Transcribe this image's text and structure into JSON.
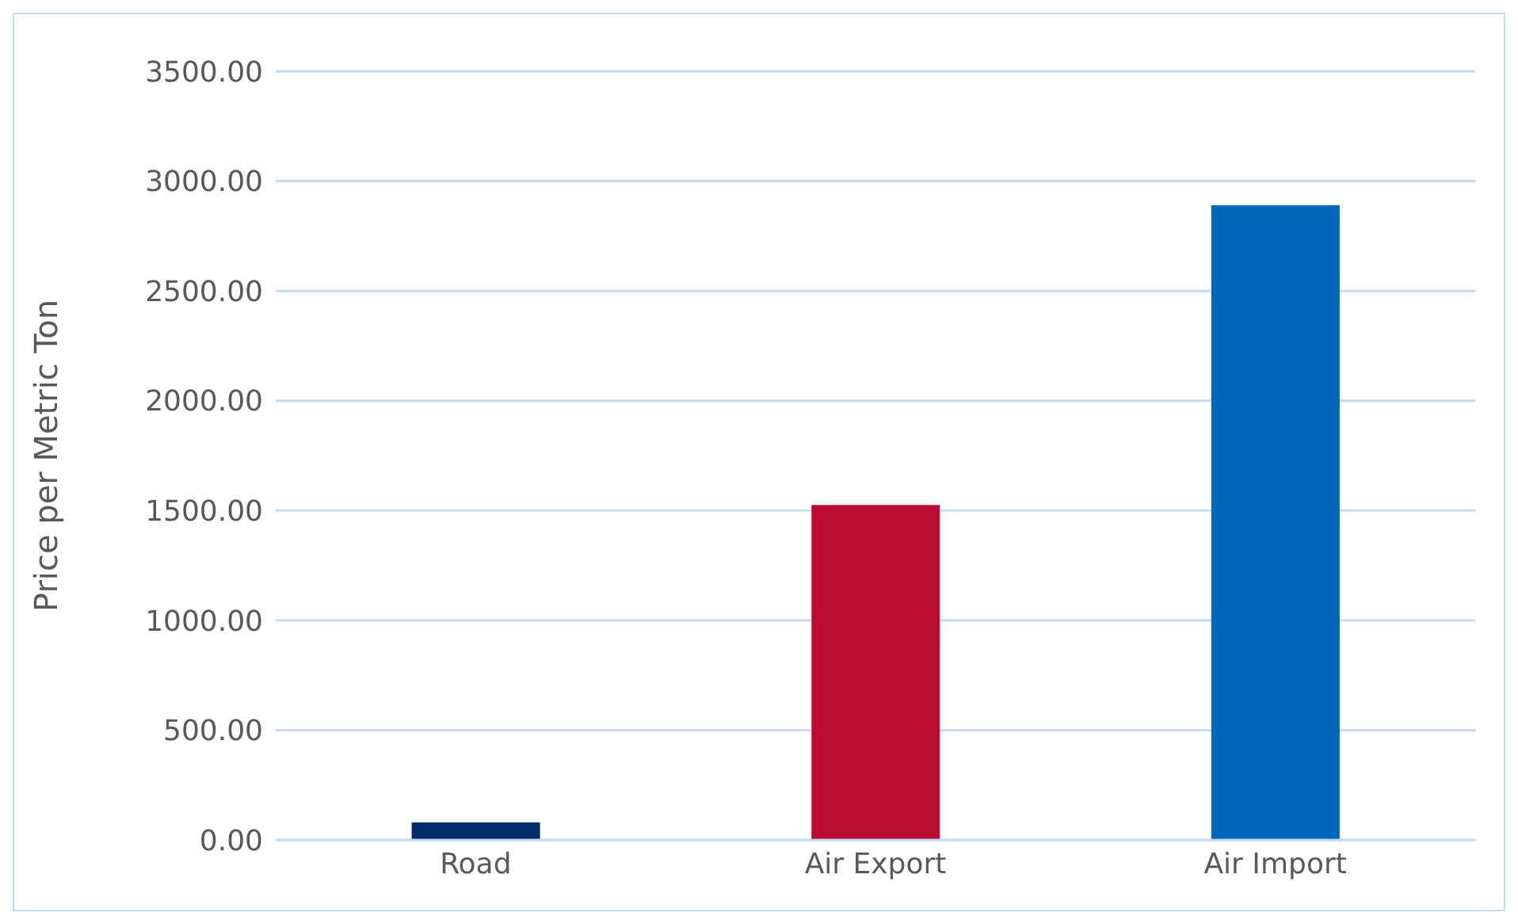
{
  "chart_data": {
    "type": "bar",
    "ylabel": "Price per Metric Ton",
    "categories": [
      "Road",
      "Air Export",
      "Air Import"
    ],
    "values": [
      80,
      1525,
      2890
    ],
    "colors": [
      "#002d6a",
      "#ba0c2f",
      "#0067b9"
    ],
    "ylim": [
      0,
      3500
    ],
    "yticks": [
      {
        "value": 0,
        "label": "0.00"
      },
      {
        "value": 500,
        "label": "500.00"
      },
      {
        "value": 1000,
        "label": "1000.00"
      },
      {
        "value": 1500,
        "label": "1500.00"
      },
      {
        "value": 2000,
        "label": "2000.00"
      },
      {
        "value": 2500,
        "label": "2500.00"
      },
      {
        "value": 3000,
        "label": "3000.00"
      },
      {
        "value": 3500,
        "label": "3500.00"
      }
    ],
    "grid": "y",
    "legend": false
  }
}
